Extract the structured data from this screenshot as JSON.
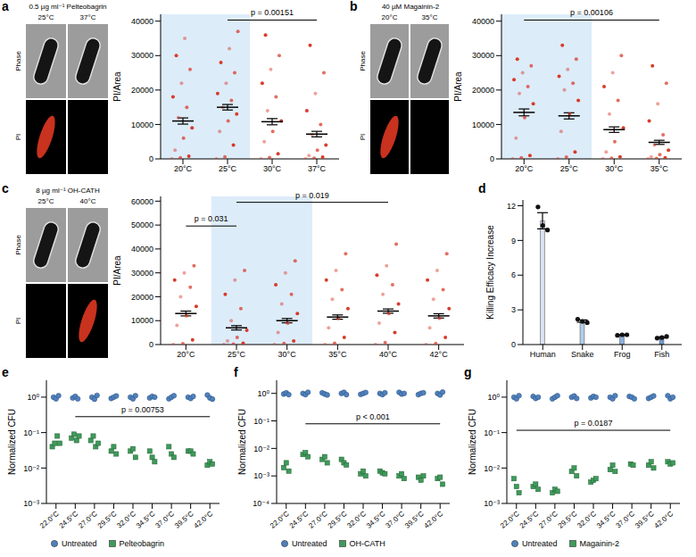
{
  "chart_data": [
    {
      "panel": "a",
      "type": "scatter",
      "title": "0.5 µg ml⁻¹ Pelteobagrin",
      "images": {
        "columns": [
          "25°C",
          "37°C"
        ],
        "rows": [
          "Phase",
          "PI"
        ],
        "pi_positive": [
          true,
          false
        ]
      },
      "y_label": "PI/Area",
      "categories": [
        "20°C",
        "25°C",
        "30°C",
        "37°C"
      ],
      "points": [
        [
          0,
          300,
          800,
          2500,
          6000,
          9000,
          12000,
          15000,
          18000,
          22000,
          26000,
          30000,
          35000
        ],
        [
          0,
          600,
          4000,
          8000,
          11000,
          13000,
          15000,
          17000,
          19000,
          22000,
          25000,
          28000,
          32000,
          37000
        ],
        [
          0,
          400,
          1500,
          5000,
          8000,
          11000,
          14000,
          18000,
          22000,
          26000,
          30000,
          36000
        ],
        [
          0,
          200,
          500,
          1000,
          2500,
          4000,
          7000,
          10000,
          14000,
          19000,
          25000,
          33000
        ]
      ],
      "means": [
        11000,
        15000,
        10800,
        7200
      ],
      "sem": [
        900,
        800,
        900,
        800
      ],
      "color": "#d7301f",
      "ylim": [
        0,
        42000
      ],
      "yticks": [
        0,
        10000,
        20000,
        30000,
        40000
      ],
      "shaded": [
        "20°C",
        "25°C"
      ],
      "brackets": [
        {
          "from": "25°C",
          "to": "37°C",
          "label": "p = 0.00151"
        }
      ]
    },
    {
      "panel": "b",
      "type": "scatter",
      "title": "40 µM Magainin-2",
      "images": {
        "columns": [
          "20°C",
          "35°C"
        ],
        "rows": [
          "Phase",
          "PI"
        ],
        "pi_positive": [
          true,
          false
        ]
      },
      "y_label": "PI/Area",
      "categories": [
        "20°C",
        "25°C",
        "30°C",
        "35°C"
      ],
      "points": [
        [
          0,
          300,
          1000,
          6000,
          12000,
          16000,
          19000,
          21000,
          23000,
          25000,
          27000,
          29000
        ],
        [
          0,
          500,
          2000,
          8000,
          13000,
          17000,
          20000,
          22000,
          24000,
          26000,
          29000,
          33000
        ],
        [
          0,
          200,
          600,
          2000,
          5000,
          9000,
          13000,
          17000,
          21000,
          25000,
          30000
        ],
        [
          0,
          100,
          300,
          600,
          1200,
          2500,
          4000,
          7000,
          11000,
          16000,
          22000,
          27000
        ]
      ],
      "means": [
        13500,
        12500,
        8500,
        4800
      ],
      "sem": [
        1000,
        900,
        800,
        600
      ],
      "color": "#d7301f",
      "ylim": [
        0,
        42000
      ],
      "yticks": [
        0,
        10000,
        20000,
        30000,
        40000
      ],
      "shaded": [
        "20°C",
        "25°C"
      ],
      "brackets": [
        {
          "from": "20°C",
          "to": "35°C",
          "label": "p = 0.00106"
        }
      ]
    },
    {
      "panel": "c",
      "type": "scatter",
      "title": "8 µg ml⁻¹ OH-CATH",
      "images": {
        "columns": [
          "25°C",
          "40°C"
        ],
        "rows": [
          "Phase",
          "PI"
        ],
        "pi_positive": [
          false,
          true
        ]
      },
      "y_label": "PI/Area",
      "categories": [
        "20°C",
        "25°C",
        "30°C",
        "35°C",
        "40°C",
        "42°C"
      ],
      "points": [
        [
          0,
          400,
          2000,
          8000,
          12000,
          16000,
          20000,
          24000,
          27000,
          30000,
          33000
        ],
        [
          0,
          200,
          600,
          1500,
          3000,
          6000,
          10000,
          15000,
          21000,
          27000,
          31000
        ],
        [
          0,
          500,
          1500,
          5000,
          9000,
          13000,
          17000,
          21000,
          25000,
          30000,
          35000
        ],
        [
          0,
          600,
          3000,
          7000,
          11000,
          15000,
          19000,
          23000,
          27000,
          31000,
          38000
        ],
        [
          0,
          800,
          5000,
          9000,
          13000,
          17000,
          21000,
          25000,
          29000,
          33000,
          42000
        ],
        [
          0,
          500,
          3000,
          7000,
          11000,
          15000,
          19000,
          23000,
          27000,
          31000,
          38000
        ]
      ],
      "means": [
        13000,
        7000,
        10000,
        11500,
        14000,
        12000
      ],
      "sem": [
        1000,
        900,
        900,
        900,
        900,
        900
      ],
      "color": "#d7301f",
      "ylim": [
        0,
        62000
      ],
      "yticks": [
        0,
        10000,
        20000,
        30000,
        40000,
        50000,
        60000
      ],
      "shaded": [
        "25°C",
        "30°C"
      ],
      "brackets": [
        {
          "from": "20°C",
          "to": "25°C",
          "label": "p = 0.031"
        },
        {
          "from": "25°C",
          "to": "40°C",
          "label": "p = 0.019"
        }
      ]
    },
    {
      "panel": "d",
      "type": "bar",
      "y_label": "Killing Efficacy Increase",
      "categories": [
        "Human",
        "Snake",
        "Frog",
        "Fish"
      ],
      "values": [
        10.7,
        2.03,
        0.83,
        0.62
      ],
      "errors": [
        0.7,
        0.1,
        0.03,
        0.05
      ],
      "points": [
        [
          11.9,
          10.3,
          9.9
        ],
        [
          2.2,
          2.0,
          1.9
        ],
        [
          0.8,
          0.85,
          0.85
        ],
        [
          0.55,
          0.6,
          0.7
        ]
      ],
      "colors": [
        "#dce4f5",
        "#b3cdea",
        "#8eb3df",
        "#6f9cd3"
      ],
      "ylim": [
        0,
        12.5
      ],
      "yticks": [
        0,
        3,
        6,
        9,
        12
      ]
    },
    {
      "panel": "e",
      "type": "scatter",
      "log": "y",
      "y_label": "Normalized CFU",
      "categories": [
        "22.0°C",
        "24.5°C",
        "27.0°C",
        "29.5°C",
        "32.0°C",
        "34.5°C",
        "37.0°C",
        "39.5°C",
        "42.0°C"
      ],
      "series": [
        {
          "name": "Untreated",
          "color": "#4f81bd",
          "marker": "circle",
          "values": [
            [
              1.0,
              0.9,
              1.1
            ],
            [
              0.95,
              1.05,
              0.9
            ],
            [
              1.0,
              0.88,
              1.12
            ],
            [
              0.92,
              1.0,
              1.08
            ],
            [
              1.0,
              0.9,
              1.1
            ],
            [
              0.95,
              1.05,
              1.0
            ],
            [
              0.9,
              1.0,
              1.1
            ],
            [
              1.0,
              0.92,
              1.05
            ],
            [
              1.15,
              0.95,
              0.88
            ]
          ]
        },
        {
          "name": "Pelteobagrin",
          "color": "#3f9a5a",
          "marker": "square",
          "values": [
            [
              0.04,
              0.05,
              0.08,
              0.05
            ],
            [
              0.07,
              0.09,
              0.06,
              0.08
            ],
            [
              0.06,
              0.08,
              0.04,
              0.05
            ],
            [
              0.03,
              0.04,
              0.025
            ],
            [
              0.03,
              0.035,
              0.02
            ],
            [
              0.03,
              0.02,
              0.015
            ],
            [
              0.04,
              0.025,
              0.02
            ],
            [
              0.03,
              0.03,
              0.025
            ],
            [
              0.012,
              0.015,
              0.013
            ]
          ]
        }
      ],
      "ylim": [
        0.001,
        3
      ],
      "yticks": [
        {
          "value": 0.001,
          "label": "10⁻³"
        },
        {
          "value": 0.01,
          "label": "10⁻²"
        },
        {
          "value": 0.1,
          "label": "10⁻¹"
        },
        {
          "value": 1,
          "label": "10⁰"
        }
      ],
      "legend": "bottom",
      "brackets": [
        {
          "from": "24.5°C",
          "to": "42.0°C",
          "label": "p = 0.00753"
        }
      ]
    },
    {
      "panel": "f",
      "type": "scatter",
      "log": "y",
      "y_label": "Normalized CFU",
      "categories": [
        "22.0°C",
        "24.5°C",
        "27.0°C",
        "29.5°C",
        "32.0°C",
        "34.5°C",
        "37.0°C",
        "39.5°C",
        "42.0°C"
      ],
      "series": [
        {
          "name": "Untreated",
          "color": "#4f81bd",
          "marker": "circle",
          "values": [
            [
              0.95,
              1.05,
              0.9
            ],
            [
              1.0,
              0.9,
              1.1
            ],
            [
              1.05,
              0.95,
              0.88
            ],
            [
              1.0,
              1.1,
              0.9
            ],
            [
              0.92,
              1.0,
              1.08
            ],
            [
              1.0,
              0.9,
              1.05
            ],
            [
              1.1,
              0.95,
              1.0
            ],
            [
              0.9,
              1.0,
              1.05
            ],
            [
              1.0,
              0.88,
              1.12
            ]
          ]
        },
        {
          "name": "OH-CATH",
          "color": "#3f9a5a",
          "marker": "square",
          "values": [
            [
              0.002,
              0.003,
              0.0015
            ],
            [
              0.006,
              0.007,
              0.005
            ],
            [
              0.004,
              0.005,
              0.003
            ],
            [
              0.004,
              0.003,
              0.0025
            ],
            [
              0.0012,
              0.0015,
              0.001
            ],
            [
              0.0015,
              0.0013,
              0.0012
            ],
            [
              0.001,
              0.0012,
              0.0008
            ],
            [
              0.0009,
              0.0007,
              0.001
            ],
            [
              0.0008,
              0.0009,
              0.0005
            ]
          ]
        }
      ],
      "ylim": [
        0.0001,
        3
      ],
      "yticks": [
        {
          "value": 0.0001,
          "label": "10⁻⁴"
        },
        {
          "value": 0.001,
          "label": "10⁻³"
        },
        {
          "value": 0.01,
          "label": "10⁻²"
        },
        {
          "value": 0.1,
          "label": "10⁻¹"
        },
        {
          "value": 1,
          "label": "10⁰"
        }
      ],
      "legend": "bottom",
      "brackets": [
        {
          "from": "24.5°C",
          "to": "42.0°C",
          "label": "p < 0.001"
        }
      ]
    },
    {
      "panel": "g",
      "type": "scatter",
      "log": "y",
      "y_label": "Normalized CFU",
      "categories": [
        "22.0°C",
        "24.5°C",
        "27.0°C",
        "29.5°C",
        "32.0°C",
        "34.5°C",
        "37.0°C",
        "39.5°C",
        "42.0°C"
      ],
      "series": [
        {
          "name": "Untreated",
          "color": "#4f81bd",
          "marker": "circle",
          "values": [
            [
              1.0,
              0.9,
              1.1
            ],
            [
              1.05,
              0.92,
              1.0
            ],
            [
              0.9,
              1.0,
              1.1
            ],
            [
              1.0,
              1.08,
              0.92
            ],
            [
              0.95,
              1.05,
              1.0
            ],
            [
              1.0,
              0.9,
              1.1
            ],
            [
              1.05,
              1.0,
              0.9
            ],
            [
              0.92,
              1.0,
              1.08
            ],
            [
              1.1,
              0.9,
              1.0
            ]
          ]
        },
        {
          "name": "Magainin-2",
          "color": "#3f9a5a",
          "marker": "square",
          "values": [
            [
              0.005,
              0.003,
              0.002
            ],
            [
              0.003,
              0.0035,
              0.0025
            ],
            [
              0.002,
              0.0025,
              0.0022
            ],
            [
              0.008,
              0.01,
              0.006
            ],
            [
              0.004,
              0.0045,
              0.005
            ],
            [
              0.009,
              0.012,
              0.008
            ],
            [
              0.013,
              0.012
            ],
            [
              0.012,
              0.015,
              0.01
            ],
            [
              0.015,
              0.013,
              0.014
            ]
          ]
        }
      ],
      "ylim": [
        0.001,
        3
      ],
      "yticks": [
        {
          "value": 0.001,
          "label": "10⁻³"
        },
        {
          "value": 0.01,
          "label": "10⁻²"
        },
        {
          "value": 0.1,
          "label": "10⁻¹"
        },
        {
          "value": 1,
          "label": "10⁰"
        }
      ],
      "legend": "bottom",
      "brackets": [
        {
          "from": "22.0°C",
          "to": "42.0°C",
          "label": "p = 0.0187"
        }
      ]
    }
  ]
}
